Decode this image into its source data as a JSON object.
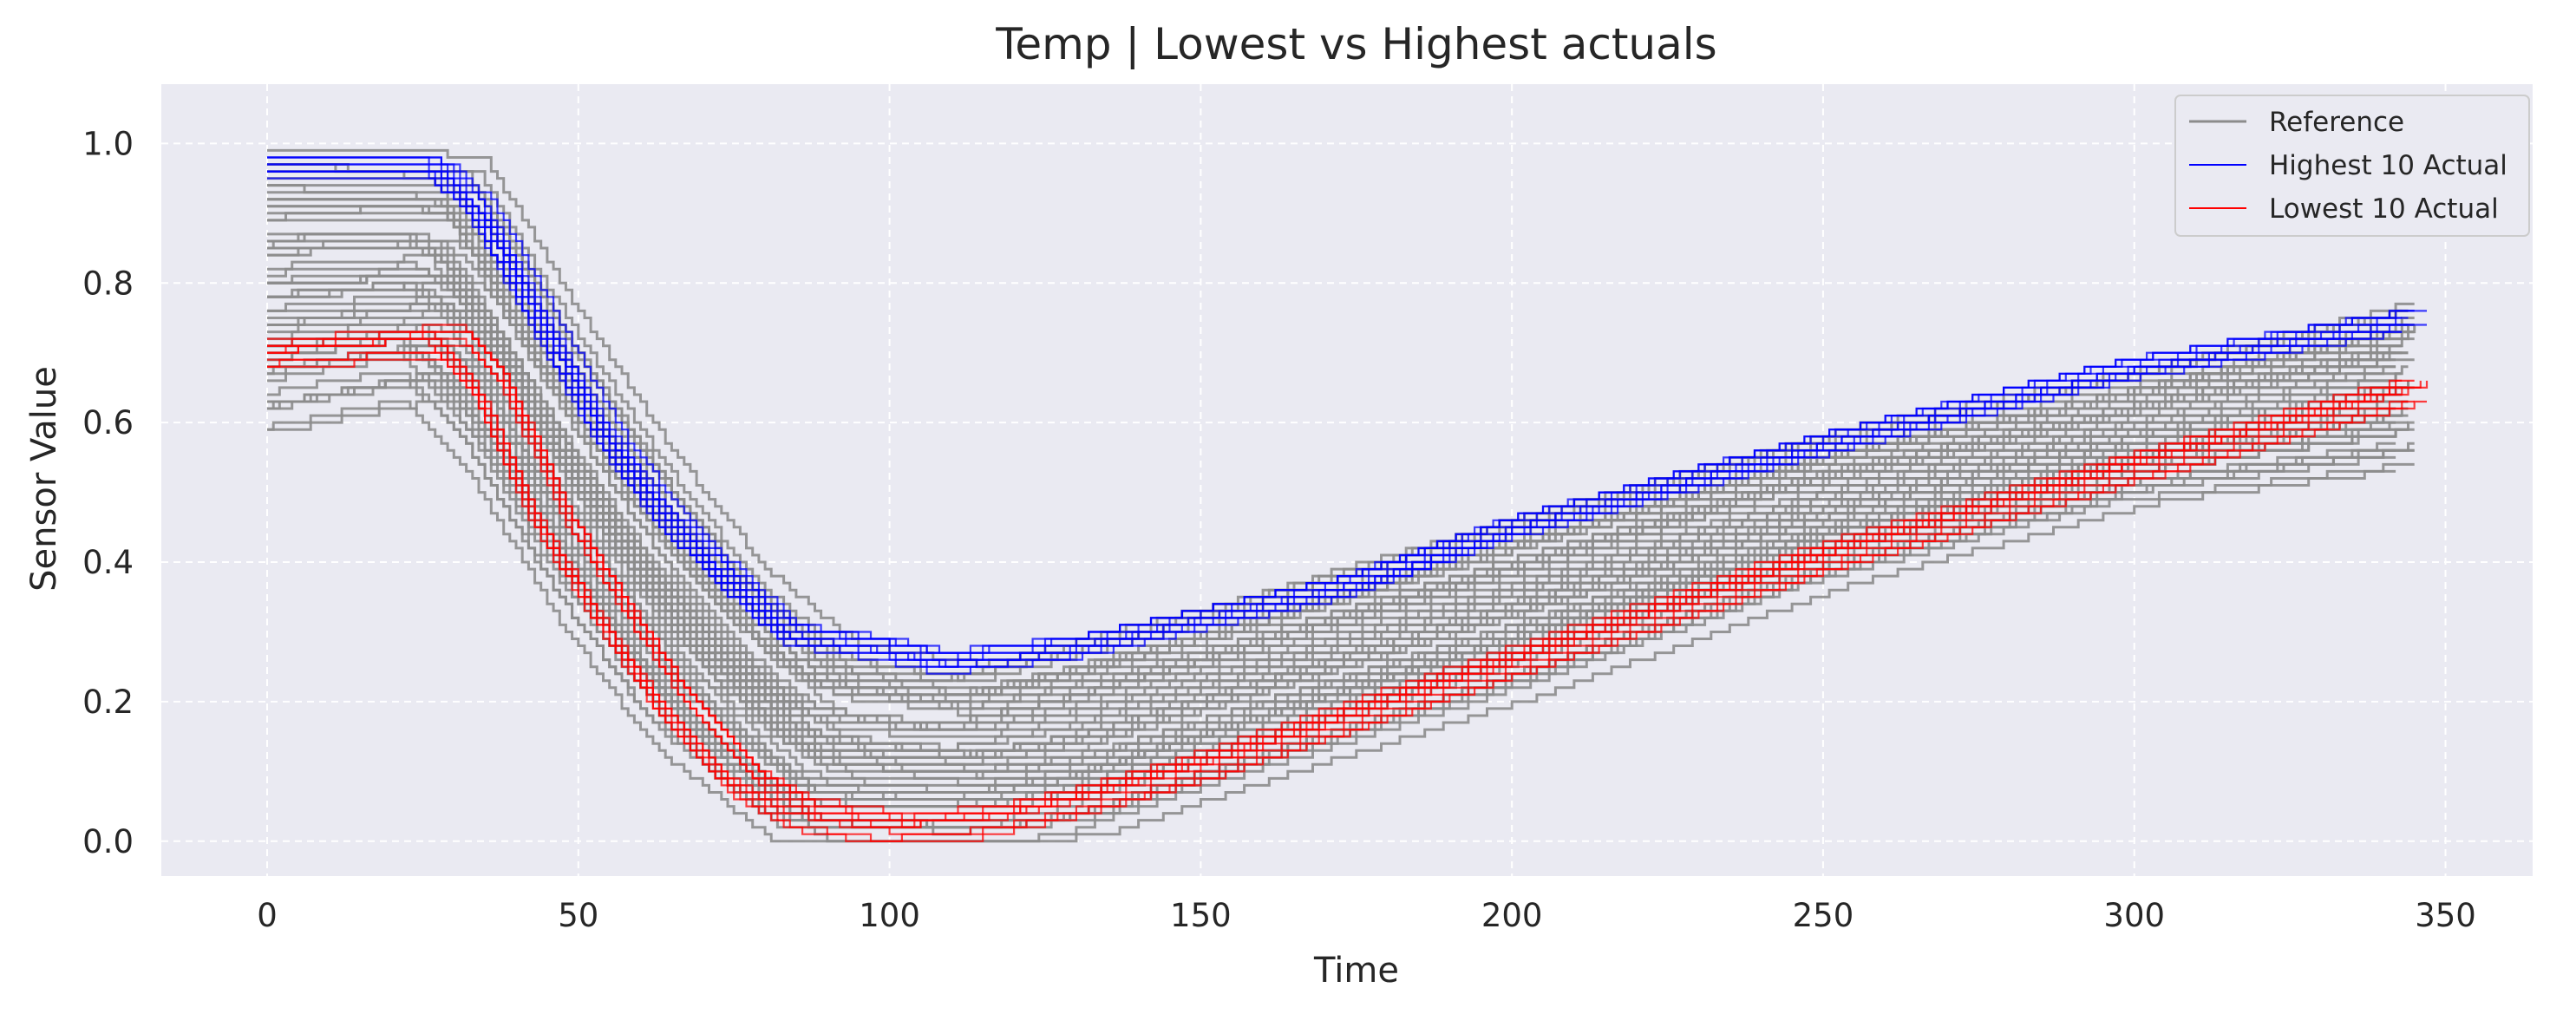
{
  "chart_data": {
    "type": "line",
    "title": "Temp | Lowest vs Highest actuals",
    "xlabel": "Time",
    "ylabel": "Sensor Value",
    "xlim": [
      -17,
      364
    ],
    "ylim": [
      -0.05,
      1.085
    ],
    "xticks": [
      0,
      50,
      100,
      150,
      200,
      250,
      300,
      350
    ],
    "yticks": [
      0.0,
      0.2,
      0.4,
      0.6,
      0.8,
      1.0
    ],
    "xtick_labels": [
      "0",
      "50",
      "100",
      "150",
      "200",
      "250",
      "300",
      "350"
    ],
    "ytick_labels": [
      "0.0",
      "0.2",
      "0.4",
      "0.6",
      "0.8",
      "1.0"
    ],
    "grid": true,
    "legend_position": "top-right",
    "colors": {
      "background": "#eaeaf2",
      "grid": "#ffffff",
      "reference": "#8c8c8c",
      "highest": "#0000ff",
      "lowest": "#ff0000"
    },
    "series": [
      {
        "name": "Reference",
        "group": "reference",
        "description": "approx. 60 gray step curves spanning the band between lowest and highest",
        "envelope_low": [
          [
            0,
            0.6
          ],
          [
            25,
            0.645
          ],
          [
            35,
            0.55
          ],
          [
            50,
            0.33
          ],
          [
            65,
            0.15
          ],
          [
            85,
            0.01
          ],
          [
            115,
            0.005
          ],
          [
            130,
            0.02
          ],
          [
            150,
            0.08
          ],
          [
            200,
            0.22
          ],
          [
            250,
            0.38
          ],
          [
            300,
            0.5
          ],
          [
            345,
            0.55
          ]
        ],
        "envelope_high": [
          [
            0,
            0.98
          ],
          [
            30,
            0.97
          ],
          [
            45,
            0.75
          ],
          [
            60,
            0.55
          ],
          [
            75,
            0.38
          ],
          [
            90,
            0.27
          ],
          [
            110,
            0.24
          ],
          [
            150,
            0.33
          ],
          [
            200,
            0.46
          ],
          [
            250,
            0.58
          ],
          [
            300,
            0.67
          ],
          [
            345,
            0.77
          ]
        ]
      },
      {
        "name": "Highest 10 Actual",
        "group": "highest",
        "points": [
          [
            0,
            0.96
          ],
          [
            28,
            0.96
          ],
          [
            35,
            0.9
          ],
          [
            45,
            0.74
          ],
          [
            55,
            0.58
          ],
          [
            65,
            0.46
          ],
          [
            75,
            0.37
          ],
          [
            85,
            0.29
          ],
          [
            100,
            0.27
          ],
          [
            110,
            0.25
          ],
          [
            130,
            0.27
          ],
          [
            150,
            0.31
          ],
          [
            175,
            0.36
          ],
          [
            200,
            0.44
          ],
          [
            250,
            0.56
          ],
          [
            300,
            0.67
          ],
          [
            345,
            0.74
          ]
        ]
      },
      {
        "name": "Lowest 10 Actual",
        "group": "lowest",
        "points": [
          [
            0,
            0.7
          ],
          [
            28,
            0.72
          ],
          [
            35,
            0.65
          ],
          [
            45,
            0.46
          ],
          [
            55,
            0.32
          ],
          [
            65,
            0.19
          ],
          [
            75,
            0.09
          ],
          [
            85,
            0.04
          ],
          [
            100,
            0.02
          ],
          [
            115,
            0.03
          ],
          [
            130,
            0.06
          ],
          [
            150,
            0.11
          ],
          [
            200,
            0.26
          ],
          [
            250,
            0.41
          ],
          [
            300,
            0.54
          ],
          [
            345,
            0.65
          ]
        ]
      }
    ]
  }
}
